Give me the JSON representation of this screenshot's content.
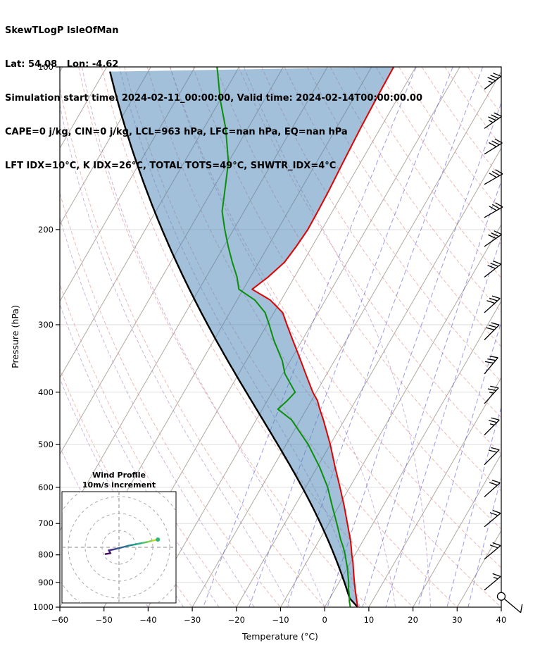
{
  "header": {
    "line1": "SkewTLogP IsleOfMan",
    "line2": "Lat: 54.08   Lon: -4.62",
    "line3": "Simulation start time: 2024-02-11_00:00:00, Valid time: 2024-02-14T00:00:00.00",
    "line4": "CAPE=0 j/kg, CIN=0 j/kg, LCL=963 hPa, LFC=nan hPa, EQ=nan hPa",
    "line5": "LFT IDX=10°C, K IDX=26°C, TOTAL TOTS=49°C, SHWTR_IDX=4°C"
  },
  "indices": {
    "cape_j_kg": 0,
    "cin_j_kg": 0,
    "lcl_hpa": 963,
    "lfc_hpa": "nan",
    "eq_hpa": "nan",
    "lifted_index_c": 10,
    "k_index_c": 26,
    "total_totals_c": 49,
    "showalter_index_c": 4
  },
  "chart_data": {
    "type": "skewt-logp",
    "title": "SkewTLogP IsleOfMan",
    "xlabel": "Temperature (°C)",
    "ylabel": "Pressure (hPa)",
    "xlim": [
      -60,
      40
    ],
    "plim": [
      100,
      1000
    ],
    "x_ticks": [
      -60,
      -50,
      -40,
      -30,
      -20,
      -10,
      0,
      10,
      20,
      30,
      40
    ],
    "y_ticks": [
      100,
      200,
      300,
      400,
      500,
      600,
      700,
      800,
      900,
      1000
    ],
    "skew_deg": 30,
    "isotherm_step": 10,
    "dry_adiabats_c": [
      -30,
      -20,
      -10,
      0,
      10,
      20,
      30,
      40,
      50,
      60,
      70,
      80,
      90,
      100,
      110,
      120,
      130,
      140,
      150,
      160,
      170,
      180
    ],
    "moist_adiabats_start_c": [
      -40,
      -32,
      -24,
      -16,
      -8,
      0,
      8,
      16,
      24
    ],
    "mixing_ratios_g_kg": [
      0.4,
      1,
      2,
      4,
      7,
      10,
      16,
      24,
      32
    ],
    "colors": {
      "temperature": "#e50000",
      "dewpoint": "#0b8f0b",
      "parcel": "#000000",
      "shade": "#4682b4",
      "shade_opacity": 0.5,
      "isotherm": "#b1a9a1",
      "grid": "#d9d9d9",
      "dry_adiabat": "#e07f7f",
      "moist_adiabat": "#9e6fb8",
      "mixing_ratio": "#4a4ad0",
      "barb": "#000000"
    },
    "sounding": {
      "pressure": [
        1000,
        975,
        950,
        925,
        900,
        875,
        850,
        825,
        800,
        775,
        750,
        700,
        650,
        600,
        550,
        500,
        450,
        430,
        415,
        400,
        370,
        350,
        320,
        300,
        285,
        270,
        258,
        245,
        230,
        215,
        200,
        185,
        170,
        150,
        130,
        115,
        100
      ],
      "temperature": [
        7.5,
        6.5,
        5.5,
        4.5,
        3.5,
        2.5,
        1.5,
        0.5,
        -0.7,
        -1.8,
        -3.0,
        -5.8,
        -8.8,
        -12.2,
        -16.0,
        -20.0,
        -24.8,
        -27.0,
        -28.6,
        -30.8,
        -34.8,
        -37.6,
        -42.2,
        -45.5,
        -48.0,
        -52.5,
        -58.0,
        -56.0,
        -54.2,
        -53.6,
        -53.2,
        -53.3,
        -53.5,
        -54.0,
        -54.5,
        -54.8,
        -55.0
      ],
      "dewpoint": [
        5.8,
        4.8,
        4.0,
        3.0,
        2.2,
        1.2,
        0.2,
        -1.0,
        -2.2,
        -3.6,
        -5.2,
        -8.2,
        -11.5,
        -15.0,
        -19.5,
        -25.0,
        -32.0,
        -36.5,
        -35.5,
        -34.8,
        -39.5,
        -41.8,
        -46.5,
        -49.5,
        -52.0,
        -56.0,
        -61.0,
        -63.0,
        -66.0,
        -69.0,
        -72.0,
        -75.0,
        -77.0,
        -80.0,
        -85.0,
        -90.0,
        -95.0
      ]
    },
    "parcel": {
      "surface_pressure": 1000,
      "surface_temp": 7.5,
      "lcl_hpa": 963
    },
    "winds": {
      "pressure": [
        930,
        815,
        710,
        625,
        545,
        480,
        420,
        370,
        320,
        285,
        245,
        215,
        190,
        165,
        145,
        130,
        110
      ],
      "speed_kt": [
        15,
        18,
        20,
        20,
        22,
        25,
        25,
        28,
        30,
        30,
        32,
        30,
        28,
        30,
        32,
        35,
        35
      ],
      "direction_deg": [
        50,
        50,
        50,
        48,
        45,
        45,
        42,
        40,
        45,
        48,
        52,
        55,
        60,
        60,
        58,
        55,
        52
      ]
    },
    "surface_station": {
      "pressure": 955,
      "speed_kt": 10,
      "direction_deg": 130
    },
    "hodograph": {
      "title1": "Wind Profile",
      "title2": "10m/s increment",
      "rings_ms": [
        10,
        20,
        30,
        40
      ],
      "marker_color": "#31b57b",
      "trace": [
        {
          "u": -8.0,
          "v": -4.0,
          "c": "#46085c"
        },
        {
          "u": -5.0,
          "v": -3.5,
          "c": "#46085c"
        },
        {
          "u": -6.0,
          "v": -1.8,
          "c": "#471d6c"
        },
        {
          "u": -3.0,
          "v": -1.2,
          "c": "#482878"
        },
        {
          "u": -0.5,
          "v": -0.6,
          "c": "#3e4989"
        },
        {
          "u": 2.0,
          "v": 0.0,
          "c": "#355e8d"
        },
        {
          "u": 5.0,
          "v": 0.8,
          "c": "#2d708e"
        },
        {
          "u": 8.0,
          "v": 1.4,
          "c": "#26828e"
        },
        {
          "u": 11.0,
          "v": 2.0,
          "c": "#1fa088"
        },
        {
          "u": 14.0,
          "v": 2.6,
          "c": "#27ad81"
        },
        {
          "u": 17.0,
          "v": 3.2,
          "c": "#52c569"
        },
        {
          "u": 20.0,
          "v": 4.0,
          "c": "#86d549"
        },
        {
          "u": 23.0,
          "v": 4.6,
          "c": "#b8de29"
        }
      ]
    }
  }
}
